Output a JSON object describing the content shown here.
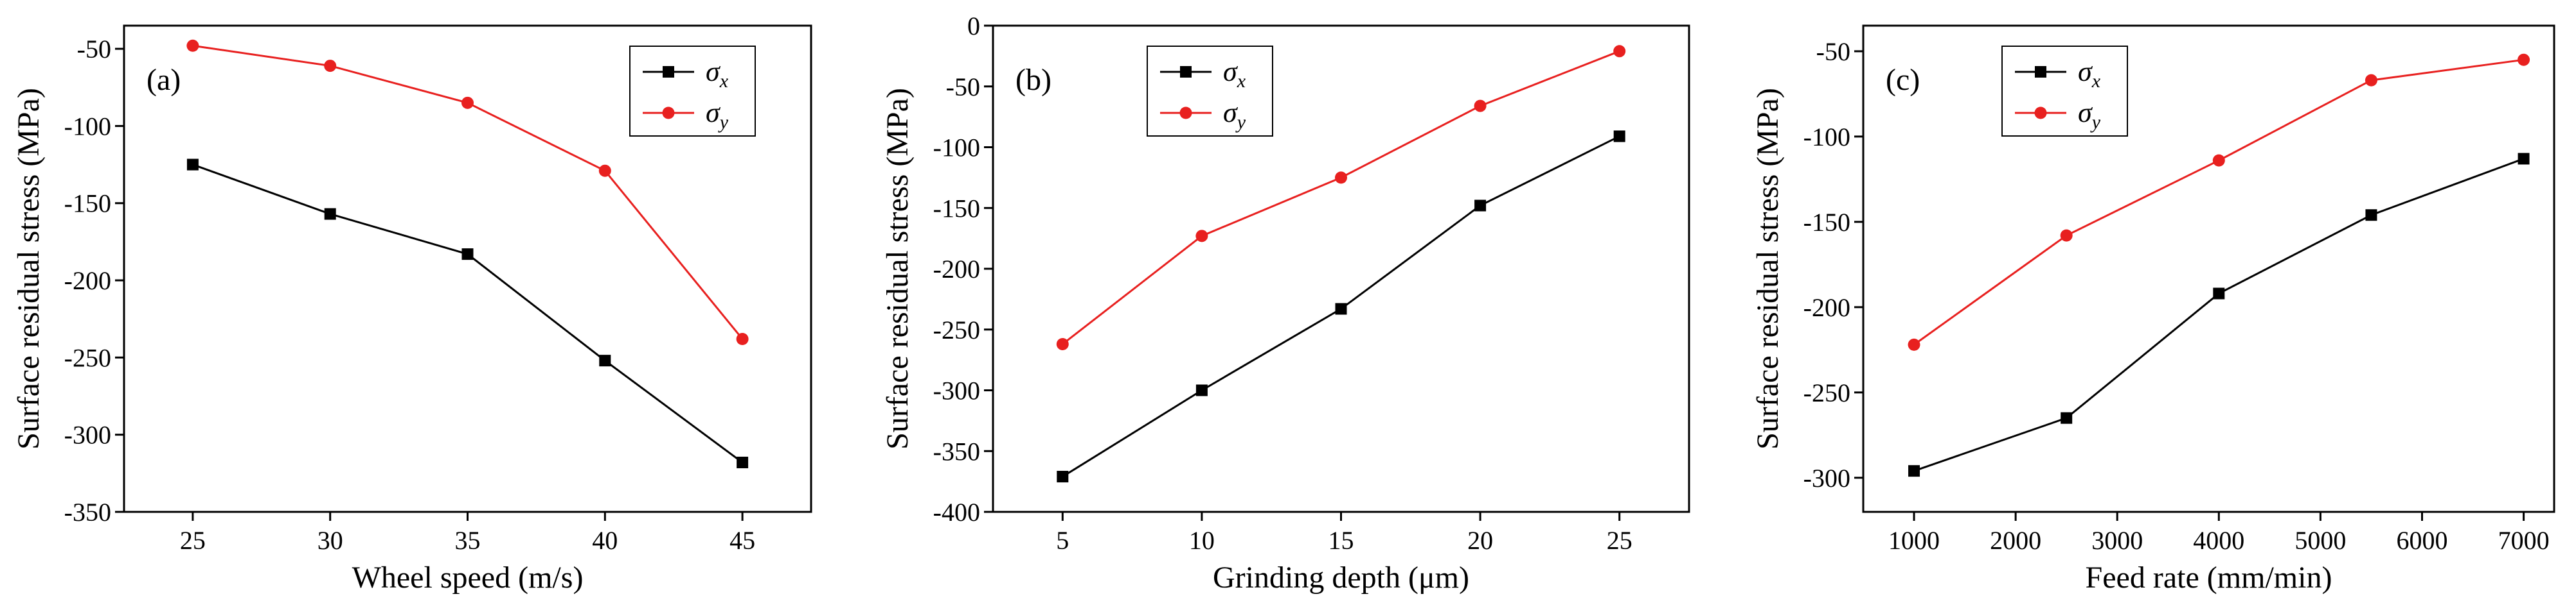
{
  "chart_data": [
    {
      "type": "line",
      "panel_label": "(a)",
      "x": [
        25,
        30,
        35,
        40,
        45
      ],
      "xticks": [
        "25",
        "30",
        "35",
        "40",
        "45"
      ],
      "xlim": [
        22.5,
        47.5
      ],
      "xlabel": "Wheel speed (m/s)",
      "ylabel": "Surface residual stress (MPa)",
      "yticks": [
        "-50",
        "-100",
        "-150",
        "-200",
        "-250",
        "-300",
        "-350"
      ],
      "ylim": [
        -350,
        -35
      ],
      "legend": "top-right",
      "series": [
        {
          "name": "σx",
          "symbol": "σ",
          "subscript": "x",
          "color": "#000000",
          "marker": "square",
          "values": [
            -125,
            -157,
            -183,
            -252,
            -318
          ]
        },
        {
          "name": "σy",
          "symbol": "σ",
          "subscript": "y",
          "color": "#e8201f",
          "marker": "circle",
          "values": [
            -48,
            -61,
            -85,
            -129,
            -238
          ]
        }
      ]
    },
    {
      "type": "line",
      "panel_label": "(b)",
      "x": [
        5,
        10,
        15,
        20,
        25
      ],
      "xticks": [
        "5",
        "10",
        "15",
        "20",
        "25"
      ],
      "xlim": [
        2.5,
        27.5
      ],
      "xlabel": "Grinding depth (μm)",
      "ylabel": "Surface residual stress (MPa)",
      "yticks": [
        "0",
        "-50",
        "-100",
        "-150",
        "-200",
        "-250",
        "-300",
        "-350",
        "-400"
      ],
      "ylim": [
        -400,
        0
      ],
      "legend": "top-left",
      "series": [
        {
          "name": "σx",
          "symbol": "σ",
          "subscript": "x",
          "color": "#000000",
          "marker": "square",
          "values": [
            -371,
            -300,
            -233,
            -148,
            -91
          ]
        },
        {
          "name": "σy",
          "symbol": "σ",
          "subscript": "y",
          "color": "#e8201f",
          "marker": "circle",
          "values": [
            -262,
            -173,
            -125,
            -66,
            -21
          ]
        }
      ]
    },
    {
      "type": "line",
      "panel_label": "(c)",
      "x": [
        1000,
        2500,
        4000,
        5500,
        7000
      ],
      "xticks": [
        "1000",
        "2000",
        "3000",
        "4000",
        "5000",
        "6000",
        "7000"
      ],
      "xlim": [
        500,
        7300
      ],
      "xlabel": "Feed rate (mm/min)",
      "ylabel": "Surface residual stress (MPa)",
      "yticks": [
        "-50",
        "-100",
        "-150",
        "-200",
        "-250",
        "-300"
      ],
      "ylim": [
        -320,
        -35
      ],
      "legend": "top-left",
      "series": [
        {
          "name": "σx",
          "symbol": "σ",
          "subscript": "x",
          "color": "#000000",
          "marker": "square",
          "values": [
            -296,
            -265,
            -192,
            -146,
            -113
          ]
        },
        {
          "name": "σy",
          "symbol": "σ",
          "subscript": "y",
          "color": "#e8201f",
          "marker": "circle",
          "values": [
            -222,
            -158,
            -114,
            -67,
            -55
          ]
        }
      ]
    }
  ]
}
